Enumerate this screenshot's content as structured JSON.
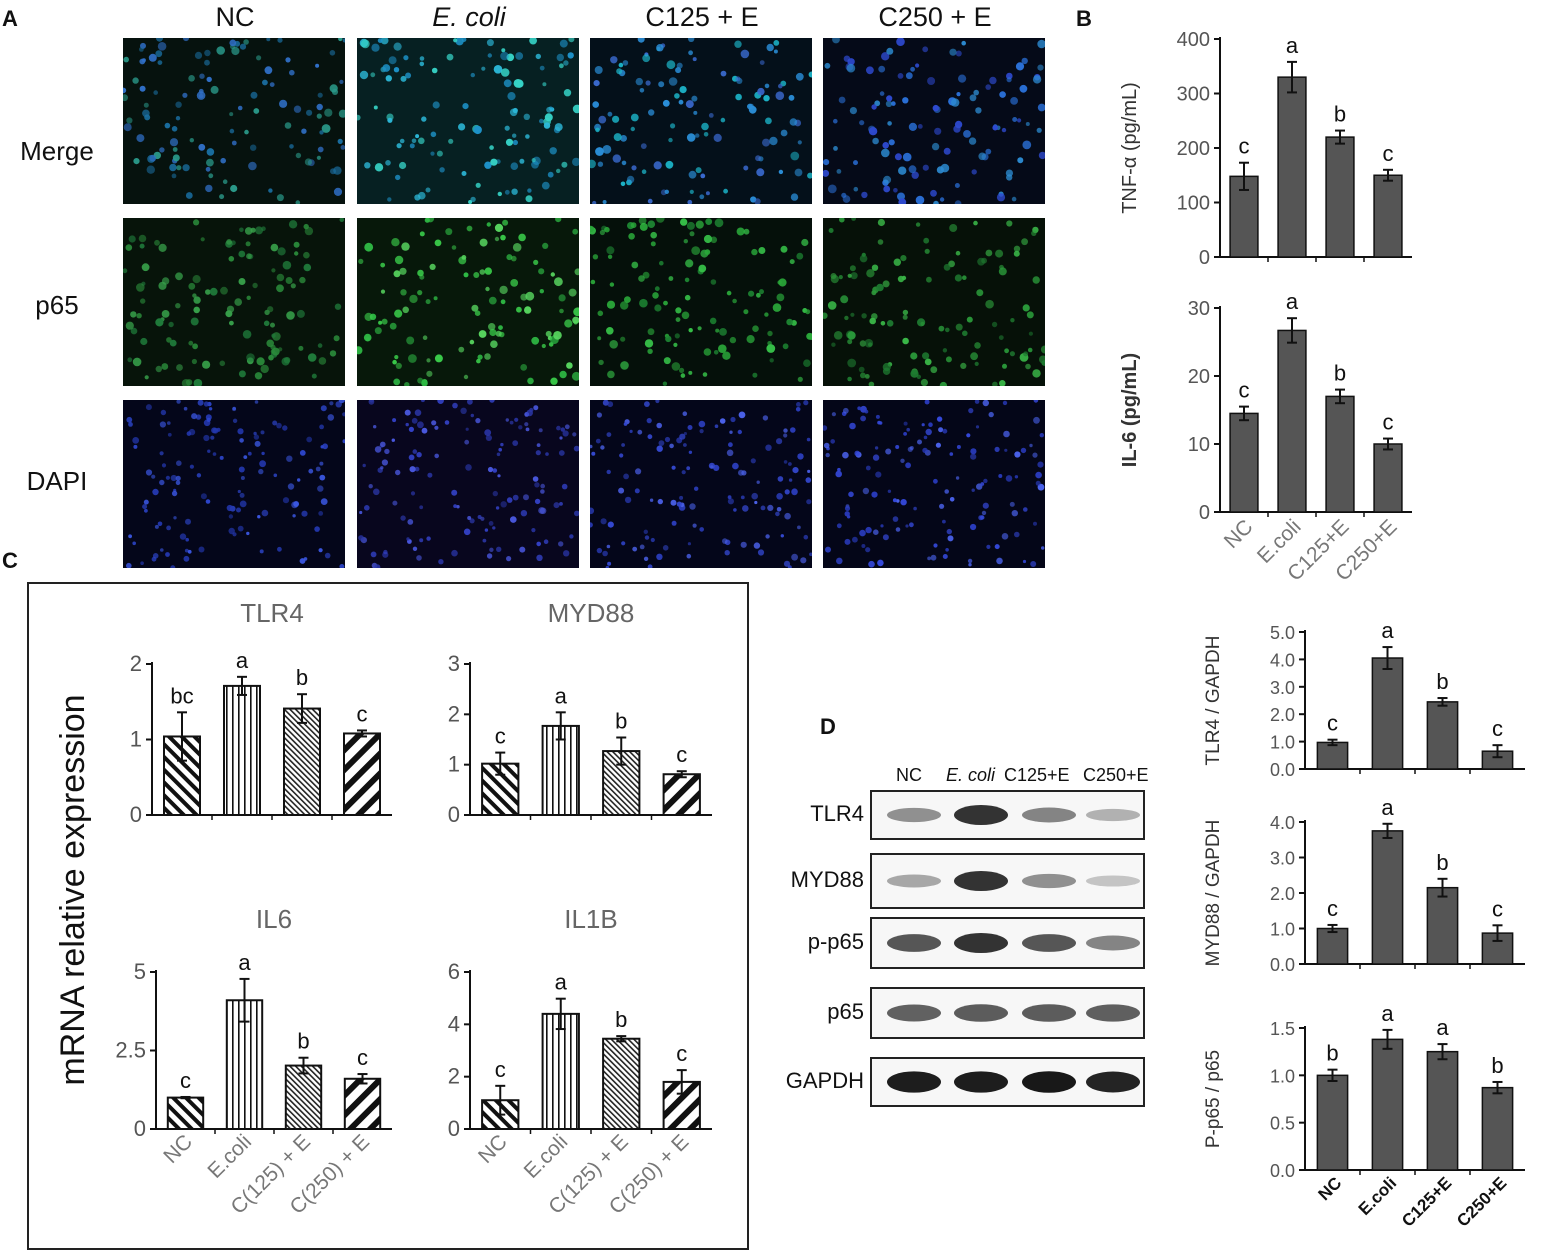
{
  "panel_labels": {
    "a": "A",
    "b": "B",
    "c": "C",
    "d": "D"
  },
  "panelA": {
    "columns": [
      "NC",
      "E. coli",
      "C125 + E",
      "C250 + E"
    ],
    "rows": [
      "Merge",
      "p65",
      "DAPI"
    ]
  },
  "chart_data": [
    {
      "id": "tnfa",
      "type": "bar",
      "ylabel": "TNF-α (pg/mL)",
      "categories": [
        "NC",
        "E.coli",
        "C125+E",
        "C250+E"
      ],
      "values": [
        148,
        330,
        220,
        150
      ],
      "errors": [
        25,
        28,
        12,
        10
      ],
      "letters": [
        "c",
        "a",
        "b",
        "c"
      ],
      "ylim": [
        0,
        400
      ],
      "yticks": [
        "0",
        "100",
        "200",
        "300",
        "400"
      ],
      "color": "#555555"
    },
    {
      "id": "il6p",
      "type": "bar",
      "ylabel": "IL-6 (pg/mL)",
      "categories": [
        "NC",
        "E.coli",
        "C125+E",
        "C250+E"
      ],
      "values": [
        14.5,
        26.7,
        17.0,
        10.0
      ],
      "errors": [
        1.0,
        1.8,
        1.0,
        0.8
      ],
      "letters": [
        "c",
        "a",
        "b",
        "c"
      ],
      "ylim": [
        0,
        30
      ],
      "yticks": [
        "0",
        "10",
        "20",
        "30"
      ],
      "color": "#555555"
    },
    {
      "id": "tlr4",
      "type": "bar",
      "title": "TLR4",
      "categories": [
        "NC",
        "E.coli",
        "C(125) + E",
        "C(250) + E"
      ],
      "values": [
        1.04,
        1.71,
        1.41,
        1.08
      ],
      "errors": [
        0.32,
        0.12,
        0.19,
        0.04
      ],
      "letters": [
        "bc",
        "a",
        "b",
        "c"
      ],
      "ylim": [
        0,
        2
      ],
      "yticks": [
        "0",
        "1",
        "2"
      ]
    },
    {
      "id": "myd88",
      "type": "bar",
      "title": "MYD88",
      "categories": [
        "NC",
        "E.coli",
        "C(125) + E",
        "C(250) + E"
      ],
      "values": [
        1.02,
        1.77,
        1.27,
        0.81
      ],
      "errors": [
        0.22,
        0.27,
        0.27,
        0.06
      ],
      "letters": [
        "c",
        "a",
        "b",
        "c"
      ],
      "ylim": [
        0,
        3
      ],
      "yticks": [
        "0",
        "1",
        "2",
        "3"
      ]
    },
    {
      "id": "il6m",
      "type": "bar",
      "title": "IL6",
      "categories": [
        "NC",
        "E.coli",
        "C(125) + E",
        "C(250) + E"
      ],
      "values": [
        1.0,
        4.1,
        2.02,
        1.6
      ],
      "errors": [
        0.02,
        0.68,
        0.25,
        0.15
      ],
      "letters": [
        "c",
        "a",
        "b",
        "c"
      ],
      "ylim": [
        0,
        5
      ],
      "yticks": [
        "0",
        "2.5",
        "5"
      ]
    },
    {
      "id": "il1b",
      "type": "bar",
      "title": "IL1B",
      "categories": [
        "NC",
        "E.coli",
        "C(125) + E",
        "C(250) + E"
      ],
      "values": [
        1.1,
        4.4,
        3.45,
        1.8
      ],
      "errors": [
        0.55,
        0.58,
        0.1,
        0.45
      ],
      "letters": [
        "c",
        "a",
        "b",
        "c"
      ],
      "ylim": [
        0,
        6
      ],
      "yticks": [
        "0",
        "2",
        "4",
        "6"
      ]
    },
    {
      "id": "tlr4g",
      "type": "bar",
      "ylabel": "TLR4 / GAPDH",
      "categories": [
        "NC",
        "E.coli",
        "C125+E",
        "C250+E"
      ],
      "values": [
        0.97,
        4.05,
        2.45,
        0.65
      ],
      "errors": [
        0.1,
        0.4,
        0.14,
        0.22
      ],
      "letters": [
        "c",
        "a",
        "b",
        "c"
      ],
      "ylim": [
        0,
        5
      ],
      "yticks": [
        "0.0",
        "1.0",
        "2.0",
        "3.0",
        "4.0",
        "5.0"
      ],
      "color": "#555555"
    },
    {
      "id": "myd88g",
      "type": "bar",
      "ylabel": "MYD88 / GAPDH",
      "categories": [
        "NC",
        "E.coli",
        "C125+E",
        "C250+E"
      ],
      "values": [
        1.0,
        3.75,
        2.15,
        0.87
      ],
      "errors": [
        0.1,
        0.2,
        0.25,
        0.22
      ],
      "letters": [
        "c",
        "a",
        "b",
        "c"
      ],
      "ylim": [
        0,
        4
      ],
      "yticks": [
        "0.0",
        "1.0",
        "2.0",
        "3.0",
        "4.0"
      ],
      "color": "#555555"
    },
    {
      "id": "pp65",
      "type": "bar",
      "ylabel": "P-p65 / p65",
      "categories": [
        "NC",
        "E.coli",
        "C125+E",
        "C250+E"
      ],
      "values": [
        1.0,
        1.38,
        1.25,
        0.87
      ],
      "errors": [
        0.06,
        0.1,
        0.08,
        0.06
      ],
      "letters": [
        "b",
        "a",
        "a",
        "b"
      ],
      "ylim": [
        0,
        1.5
      ],
      "yticks": [
        "0.0",
        "0.5",
        "1.0",
        "1.5"
      ],
      "color": "#555555"
    }
  ],
  "panelC": {
    "ylabel": "mRNA relative expression"
  },
  "panelD": {
    "lanes": [
      "NC",
      "E. coli",
      "C125+E",
      "C250+E"
    ],
    "blots": [
      "TLR4",
      "MYD88",
      "p-p65",
      "p65",
      "GAPDH"
    ]
  }
}
